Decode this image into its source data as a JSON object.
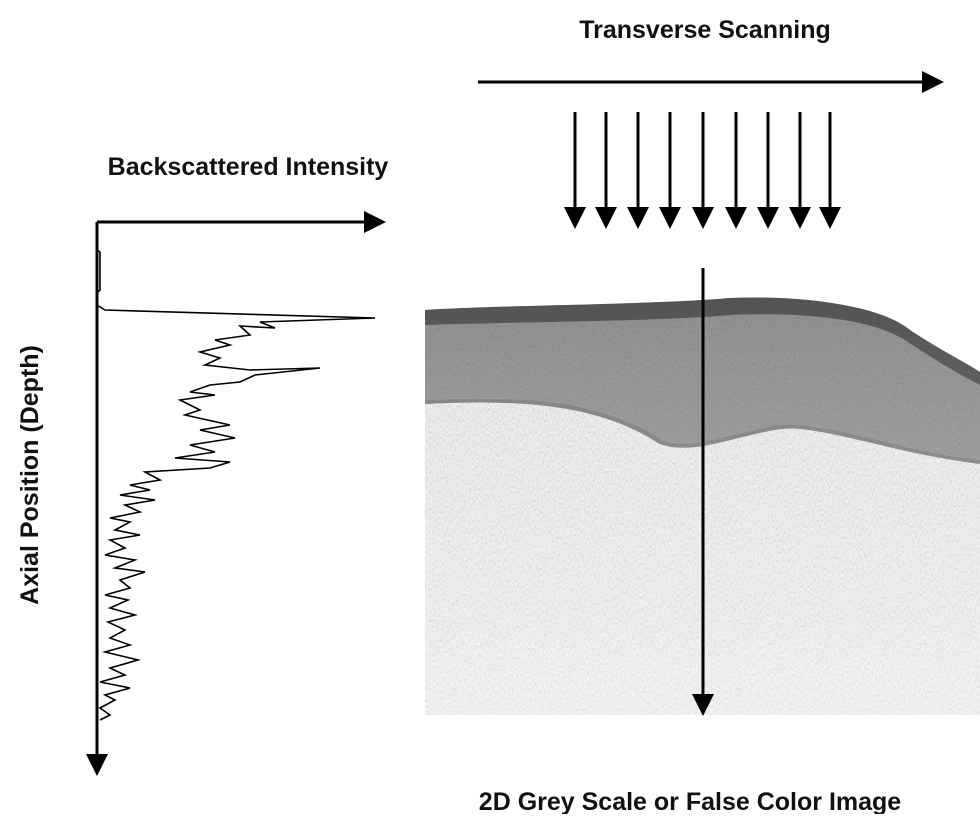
{
  "labels": {
    "transverse": "Transverse Scanning",
    "intensity": "Backscattered Intensity",
    "axial": "Axial Position (Depth)",
    "image": "2D Grey Scale or False Color Image"
  }
}
